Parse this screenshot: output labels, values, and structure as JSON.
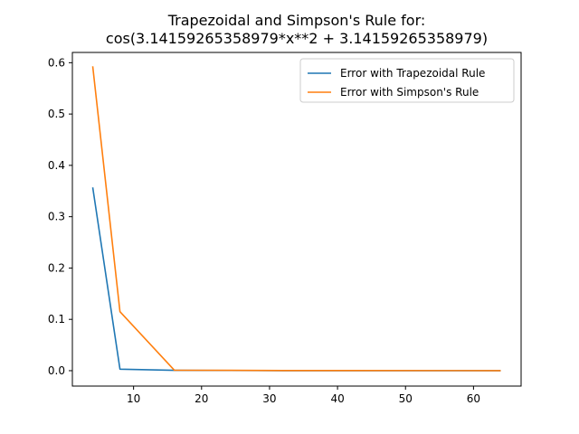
{
  "chart_data": {
    "type": "line",
    "title": [
      "Trapezoidal and Simpson's Rule for:",
      "cos(3.14159265358979*x**2 + 3.14159265358979)"
    ],
    "xlabel": "",
    "ylabel": "",
    "xlim": [
      1,
      67
    ],
    "ylim": [
      -0.03,
      0.62
    ],
    "xticks": [
      10,
      20,
      30,
      40,
      50,
      60
    ],
    "yticks": [
      0.0,
      0.1,
      0.2,
      0.3,
      0.4,
      0.5,
      0.6
    ],
    "ytick_labels": [
      "0.0",
      "0.1",
      "0.2",
      "0.3",
      "0.4",
      "0.5",
      "0.6"
    ],
    "grid": false,
    "legend_position": "top-right",
    "series": [
      {
        "name": "Error with Trapezoidal Rule",
        "color": "#1f77b4",
        "x": [
          4,
          8,
          16,
          32,
          64
        ],
        "y": [
          0.357,
          0.003,
          0.0007,
          0.0002,
          5e-05
        ]
      },
      {
        "name": "Error with Simpson's Rule",
        "color": "#ff7f0e",
        "x": [
          4,
          8,
          16,
          32,
          64
        ],
        "y": [
          0.593,
          0.115,
          0.001,
          0.0003,
          0.0001
        ]
      }
    ]
  }
}
